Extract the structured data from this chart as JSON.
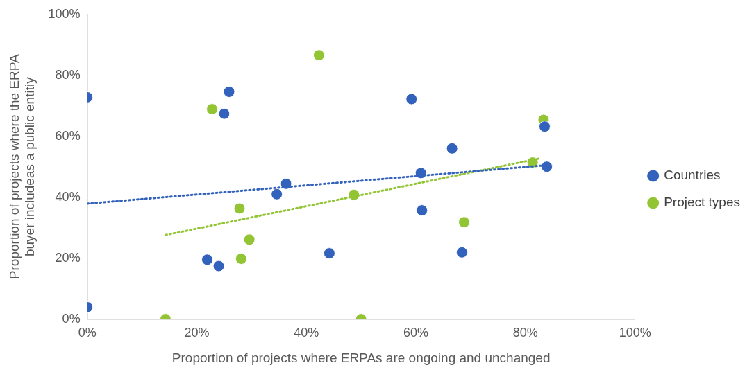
{
  "chart_data": {
    "type": "scatter",
    "xlabel": "Proportion of projects where ERPAs are ongoing and unchanged",
    "ylabel": "Proportion of projects where the ERPA buyer includeas a public entitiy",
    "xlim": [
      0,
      100
    ],
    "ylim": [
      0,
      100
    ],
    "xticks": [
      {
        "value": 0,
        "label": "0%"
      },
      {
        "value": 20,
        "label": "20%"
      },
      {
        "value": 40,
        "label": "40%"
      },
      {
        "value": 60,
        "label": "60%"
      },
      {
        "value": 80,
        "label": "80%"
      },
      {
        "value": 100,
        "label": "100%"
      }
    ],
    "yticks": [
      {
        "value": 0,
        "label": "0%"
      },
      {
        "value": 20,
        "label": "20%"
      },
      {
        "value": 40,
        "label": "40%"
      },
      {
        "value": 60,
        "label": "60%"
      },
      {
        "value": 80,
        "label": "80%"
      },
      {
        "value": 100,
        "label": "100%"
      }
    ],
    "grid": false,
    "legend": "right",
    "marker": "circle",
    "series": [
      {
        "name": "Countries",
        "color": "#3262bc",
        "x": [
          0,
          0,
          25.9,
          25.0,
          21.9,
          24.0,
          34.6,
          36.3,
          44.2,
          59.2,
          66.6,
          60.9,
          61.1,
          68.4,
          83.5,
          83.9
        ],
        "values": [
          72.8,
          3.9,
          74.6,
          67.4,
          19.5,
          17.4,
          41.0,
          44.4,
          21.6,
          72.2,
          56.0,
          47.9,
          35.7,
          21.9,
          63.2,
          50.0
        ]
      },
      {
        "name": "Project types",
        "color": "#92c434",
        "x": [
          42.3,
          22.8,
          27.8,
          29.6,
          28.1,
          14.3,
          48.7,
          50.0,
          68.8,
          83.3,
          81.3
        ],
        "values": [
          86.6,
          68.9,
          36.3,
          26.1,
          19.8,
          0,
          40.8,
          0,
          31.8,
          65.4,
          51.4
        ]
      },
      {
        "type": "line",
        "color": "#3262bc",
        "line_style": "dotted",
        "marker": "none",
        "x": [
          0,
          83.9
        ],
        "values": [
          37.9,
          50.5
        ]
      },
      {
        "type": "line",
        "color": "#92c434",
        "line_style": "dotted",
        "marker": "none",
        "x": [
          14.3,
          82.8
        ],
        "values": [
          27.6,
          52.8
        ]
      }
    ]
  }
}
